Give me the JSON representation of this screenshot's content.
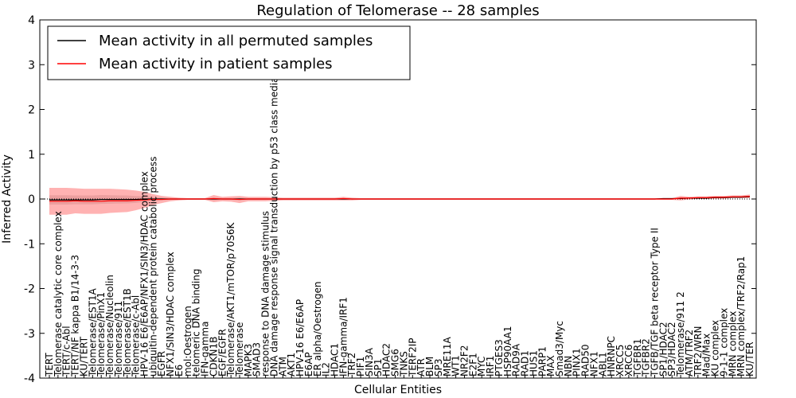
{
  "chart_data": {
    "type": "line",
    "title": "Regulation of Telomerase -- 28 samples",
    "xlabel": "Cellular Entities",
    "ylabel": "Inferred Activity",
    "ylim": [
      -4,
      4
    ],
    "yticks": [
      -4,
      -3,
      -2,
      -1,
      0,
      1,
      2,
      3,
      4
    ],
    "legend_position": "top-left",
    "categories": [
      "TERT",
      "Telomerase catalytic core complex",
      "TERT/c-Abl",
      "TERT/NF kappa B1/14-3-3",
      "KU/TERT",
      "Telomerase/EST1A",
      "Telomerase/PinX1",
      "Telomerase/Nucleolin",
      "Telomerase/911",
      "Telomerase/EST1B",
      "Telomerase/c-Abl",
      "HPV-16 E6/E6AP/NFX1/SIN3/HDAC complex",
      "ubiquitin-dependent protein catabolic process",
      "EGFR",
      "NFX1/SIN3/HDAC complex",
      "E6",
      "mol:Oestrogen",
      "telomeric DNA binding",
      "IFN-gamma",
      "CDKN1B",
      "EGF/EGFR",
      "Telomerase/AKT1/mTOR/p70S6K",
      "Telomerase",
      "MAPK3",
      "SMAD3",
      "response to DNA damage stimulus",
      "DNA damage response signal transduction by p53 class mediator",
      "ATM",
      "AKT1",
      "HPV-16 E6/E6AP",
      "E6AP",
      "ER alpha/Oestrogen",
      "IL2",
      "HDAC1",
      "IFN-gamma/IRF1",
      "TRF2",
      "PIF1",
      "SIN3A",
      "SP1",
      "HDAC2",
      "SMG6",
      "TNKS",
      "TERF2IP",
      "ATR",
      "BLM",
      "SP3",
      "MRE11A",
      "WT1",
      "NR2F2",
      "E2F1",
      "MYC",
      "IRF1",
      "PTGES3",
      "HSP90AA1",
      "RAD9A",
      "RAD1",
      "HUS1",
      "PARP1",
      "MAX",
      "Smad3/Myc",
      "NBN",
      "PINX1",
      "RAD50",
      "NFX1",
      "ABL1",
      "HNRNPC",
      "XRCC5",
      "XRCC6",
      "TGFBR1",
      "TGFBR2",
      "TGFB/TGF beta receptor Type II",
      "SP1/HDAC2",
      "SP3/HDAC2",
      "Telomerase/911 2",
      "ATM/TRF2",
      "TRF2/WRN",
      "Mad/Max",
      "KU complex",
      "9-1-1 complex",
      "MRN complex",
      "MRN complex/TRF2/Rap1",
      "KU/TER"
    ],
    "series": [
      {
        "name": "Mean activity in all permuted samples",
        "color": "#000000",
        "values": [
          -0.02,
          -0.02,
          -0.02,
          -0.02,
          -0.02,
          -0.02,
          -0.01,
          -0.01,
          -0.01,
          -0.01,
          -0.01,
          0.0,
          0.0,
          0.0,
          0.0,
          0.0,
          0.0,
          0.0,
          0.0,
          0.0,
          0.0,
          0.0,
          0.0,
          0.0,
          0.0,
          0.0,
          0.0,
          0.0,
          0.0,
          0.0,
          0.0,
          0.0,
          0.0,
          0.0,
          0.0,
          0.0,
          0.0,
          0.0,
          0.0,
          0.0,
          0.0,
          0.0,
          0.0,
          0.0,
          0.0,
          0.0,
          0.0,
          0.0,
          0.0,
          0.0,
          0.0,
          0.0,
          0.0,
          0.0,
          0.0,
          0.0,
          0.0,
          0.0,
          0.0,
          0.0,
          0.0,
          0.0,
          0.0,
          0.0,
          0.0,
          0.0,
          0.0,
          0.0,
          0.0,
          0.0,
          0.0,
          0.01,
          0.01,
          0.01,
          0.02,
          0.02,
          0.02,
          0.03,
          0.03,
          0.04,
          0.04,
          0.05
        ]
      },
      {
        "name": "Mean activity in patient samples",
        "color": "#ff0000",
        "values": [
          -0.05,
          -0.05,
          -0.05,
          -0.04,
          -0.05,
          -0.05,
          -0.05,
          -0.04,
          -0.04,
          -0.04,
          -0.03,
          -0.02,
          -0.01,
          -0.01,
          0.0,
          0.0,
          0.0,
          0.0,
          0.0,
          0.01,
          0.0,
          0.0,
          -0.01,
          0.0,
          0.0,
          0.0,
          0.0,
          0.0,
          0.0,
          0.0,
          0.0,
          0.0,
          0.0,
          0.0,
          0.01,
          0.0,
          0.0,
          0.0,
          0.0,
          0.0,
          0.0,
          0.0,
          0.0,
          0.0,
          0.0,
          0.0,
          0.0,
          0.0,
          0.0,
          0.0,
          0.0,
          0.0,
          0.0,
          0.0,
          0.0,
          0.0,
          0.0,
          0.0,
          0.0,
          0.0,
          0.0,
          0.0,
          0.0,
          0.0,
          0.0,
          0.0,
          0.0,
          0.0,
          0.0,
          0.0,
          0.0,
          0.0,
          0.0,
          0.02,
          0.02,
          0.03,
          0.03,
          0.04,
          0.04,
          0.05,
          0.05,
          0.06
        ]
      }
    ],
    "band_halfwidth": [
      0.3,
      0.3,
      0.3,
      0.28,
      0.28,
      0.28,
      0.28,
      0.27,
      0.26,
      0.25,
      0.22,
      0.18,
      0.12,
      0.08,
      0.05,
      0.03,
      0.02,
      0.02,
      0.02,
      0.08,
      0.05,
      0.06,
      0.08,
      0.05,
      0.05,
      0.05,
      0.04,
      0.03,
      0.03,
      0.03,
      0.03,
      0.03,
      0.03,
      0.03,
      0.04,
      0.03,
      0.02,
      0.02,
      0.02,
      0.02,
      0.02,
      0.02,
      0.02,
      0.02,
      0.02,
      0.02,
      0.02,
      0.02,
      0.02,
      0.02,
      0.02,
      0.02,
      0.02,
      0.02,
      0.02,
      0.02,
      0.02,
      0.02,
      0.02,
      0.02,
      0.02,
      0.02,
      0.02,
      0.02,
      0.02,
      0.02,
      0.02,
      0.02,
      0.02,
      0.02,
      0.02,
      0.02,
      0.02,
      0.05,
      0.03,
      0.03,
      0.03,
      0.03,
      0.03,
      0.03,
      0.03,
      0.04
    ]
  }
}
